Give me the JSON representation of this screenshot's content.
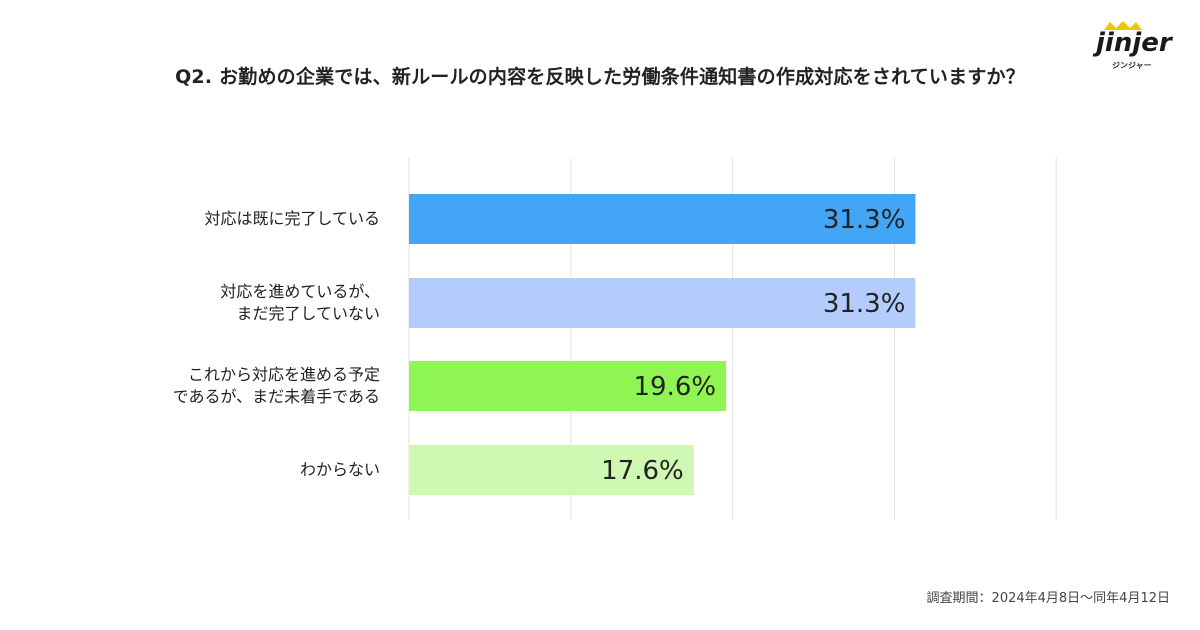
{
  "title": "Q2. お勤めの企業では、新ルールの内容を反映した労働条件通知書の作成対応をされていますか？",
  "logo": {
    "word": "jinjer",
    "sub": "ジンジャー"
  },
  "footnote": "調査期間：2024年4月8日〜同年4月12日",
  "chart_data": {
    "type": "bar",
    "orientation": "horizontal",
    "categories": [
      "対応は既に完了している",
      "対応を進めているが、\nまだ完了していない",
      "これから対応を進める予定\nであるが、まだ未着手である",
      "わからない"
    ],
    "values": [
      31.3,
      31.3,
      19.6,
      17.6
    ],
    "value_labels": [
      "31.3%",
      "31.3%",
      "19.6%",
      "17.6%"
    ],
    "colors": [
      "#42a5f5",
      "#b3ccfc",
      "#8ef552",
      "#cff9b3"
    ],
    "xlim": [
      0,
      40
    ],
    "grid": true,
    "legend": "none"
  }
}
